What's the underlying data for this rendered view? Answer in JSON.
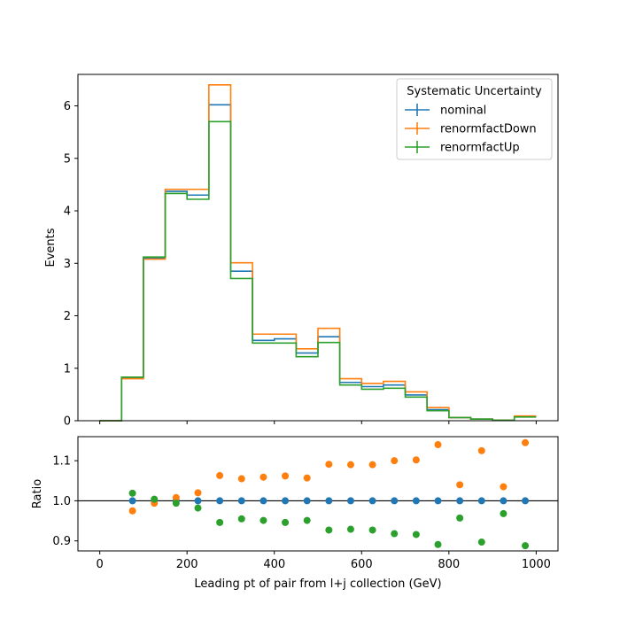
{
  "chart_data": [
    {
      "type": "line",
      "drawstyle": "steps",
      "xlabel": "",
      "ylabel": "Events",
      "xlim": [
        -50,
        1050
      ],
      "ylim": [
        0,
        6.6
      ],
      "xticks": [
        0,
        200,
        400,
        600,
        800,
        1000
      ],
      "yticks": [
        0,
        1,
        2,
        3,
        4,
        5,
        6
      ],
      "xtick_labels_visible": false,
      "grid": false,
      "legend": {
        "title": "Systematic Uncertainty",
        "placement": "top-right"
      },
      "bin_edges": [
        0,
        50,
        100,
        150,
        200,
        250,
        300,
        350,
        400,
        450,
        500,
        550,
        600,
        650,
        700,
        750,
        800,
        850,
        900,
        950,
        1000
      ],
      "series": [
        {
          "name": "nominal",
          "color": "#1f77b4",
          "values": [
            0.0,
            0.82,
            3.1,
            4.37,
            4.3,
            6.02,
            2.85,
            1.53,
            1.56,
            1.29,
            1.6,
            0.73,
            0.65,
            0.68,
            0.49,
            0.21,
            0.06,
            0.03,
            0.01,
            0.08
          ]
        },
        {
          "name": "renormfactDown",
          "color": "#ff7f0e",
          "values": [
            0.0,
            0.8,
            3.08,
            4.41,
            4.41,
            6.4,
            3.01,
            1.65,
            1.65,
            1.37,
            1.76,
            0.8,
            0.71,
            0.75,
            0.55,
            0.25,
            0.06,
            0.03,
            0.01,
            0.09
          ]
        },
        {
          "name": "renormfactUp",
          "color": "#2ca02c",
          "values": [
            0.0,
            0.83,
            3.12,
            4.33,
            4.22,
            5.7,
            2.71,
            1.48,
            1.48,
            1.22,
            1.49,
            0.68,
            0.6,
            0.62,
            0.45,
            0.19,
            0.06,
            0.03,
            0.01,
            0.07
          ]
        }
      ]
    },
    {
      "type": "scatter",
      "xlabel": "Leading pt of pair from l+j collection (GeV)",
      "ylabel": "Ratio",
      "xlim": [
        -50,
        1050
      ],
      "ylim": [
        0.875,
        1.16
      ],
      "xticks": [
        0,
        200,
        400,
        600,
        800,
        1000
      ],
      "yticks": [
        0.9,
        1.0,
        1.1
      ],
      "reference_line": 1.0,
      "grid": false,
      "x": [
        75,
        125,
        175,
        225,
        275,
        325,
        375,
        425,
        475,
        525,
        575,
        625,
        675,
        725,
        775,
        825,
        875,
        925,
        975
      ],
      "series": [
        {
          "name": "nominal",
          "color": "#1f77b4",
          "values": [
            1.0,
            1.0,
            1.0,
            1.0,
            1.0,
            1.0,
            1.0,
            1.0,
            1.0,
            1.0,
            1.0,
            1.0,
            1.0,
            1.0,
            1.0,
            1.0,
            1.0,
            1.0,
            1.0
          ]
        },
        {
          "name": "renormfactDown",
          "color": "#ff7f0e",
          "values": [
            0.975,
            0.994,
            1.008,
            1.02,
            1.063,
            1.055,
            1.059,
            1.062,
            1.057,
            1.091,
            1.09,
            1.09,
            1.1,
            1.102,
            1.14,
            1.04,
            1.125,
            1.035,
            1.145
          ]
        },
        {
          "name": "renormfactUp",
          "color": "#2ca02c",
          "values": [
            1.019,
            1.004,
            0.994,
            0.982,
            0.946,
            0.955,
            0.951,
            0.946,
            0.951,
            0.927,
            0.929,
            0.927,
            0.918,
            0.916,
            0.891,
            0.957,
            0.897,
            0.968,
            0.888
          ]
        }
      ]
    }
  ]
}
